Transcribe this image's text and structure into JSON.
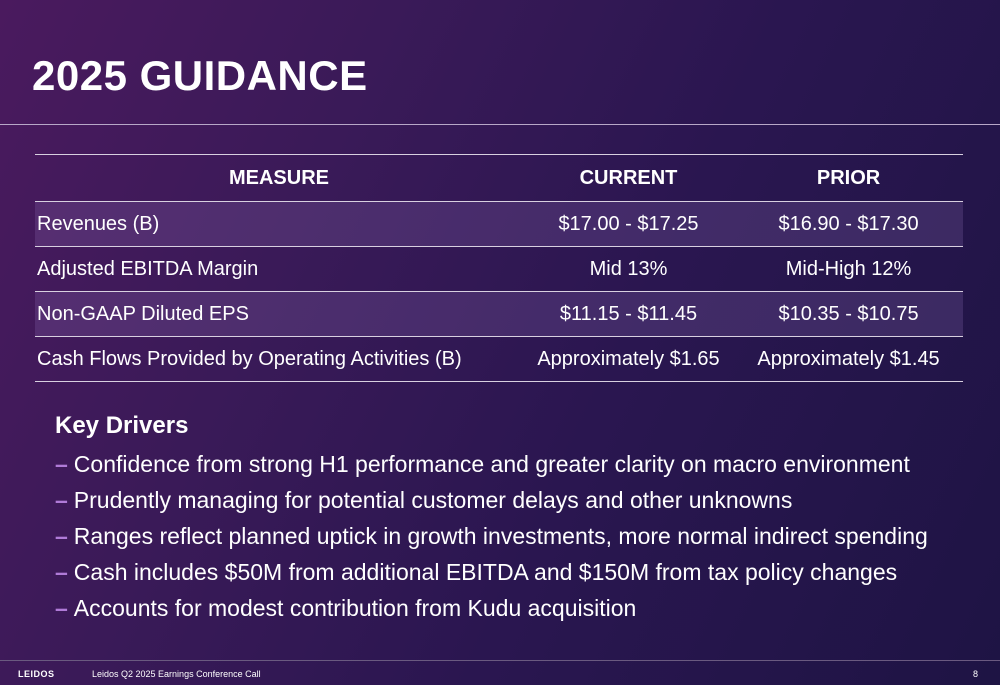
{
  "slide": {
    "title": "2025 GUIDANCE"
  },
  "table": {
    "headers": {
      "measure": "MEASURE",
      "current": "CURRENT",
      "prior": "PRIOR"
    },
    "rows": [
      {
        "measure": "Revenues (B)",
        "current": "$17.00 - $17.25",
        "prior": "$16.90 - $17.30"
      },
      {
        "measure": "Adjusted EBITDA Margin",
        "current": "Mid 13%",
        "prior": "Mid-High 12%"
      },
      {
        "measure": "Non-GAAP Diluted EPS",
        "current": "$11.15 - $11.45",
        "prior": "$10.35 - $10.75"
      },
      {
        "measure": "Cash Flows Provided by Operating Activities (B)",
        "current": "Approximately $1.65",
        "prior": "Approximately $1.45"
      }
    ]
  },
  "drivers": {
    "heading": "Key Drivers",
    "bullet_marker": "–",
    "items": [
      "Confidence from strong H1 performance and greater clarity on macro environment",
      "Prudently managing for potential customer delays and other unknowns",
      "Ranges reflect planned uptick in growth investments, more normal indirect spending",
      "Cash includes $50M from additional EBITDA and $150M from tax policy changes",
      "Accounts for modest contribution from Kudu acquisition"
    ]
  },
  "footer": {
    "logo": "LEIDOS",
    "event": "Leidos Q2 2025 Earnings Conference Call",
    "page_number": "8"
  },
  "colors": {
    "background": "#3a1a58",
    "bullet_accent": "#b07bd8"
  }
}
